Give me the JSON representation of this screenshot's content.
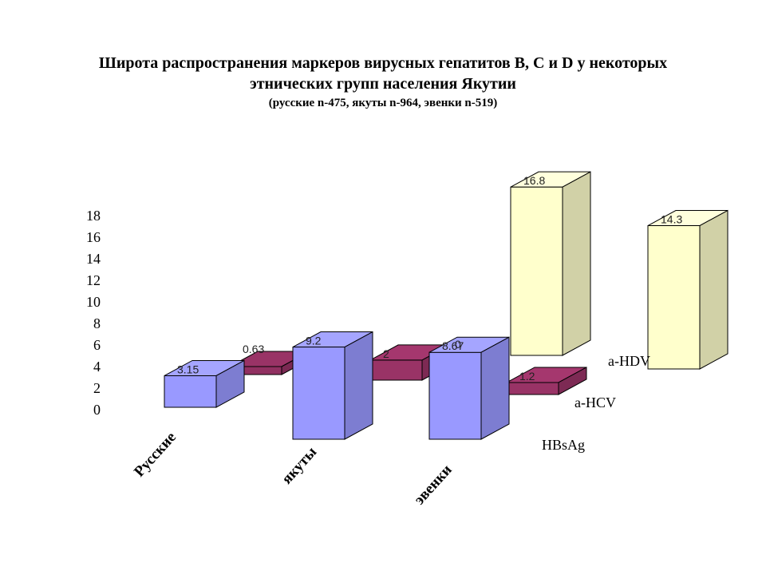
{
  "title": {
    "line1": "Широта распространения маркеров вирусных гепатитов B, C и D у некоторых",
    "line2": "этнических групп населения Якутии",
    "subtitle": "(русские n-475,    якуты n-964,    эвенки n-519)"
  },
  "chart_data": {
    "type": "bar",
    "subtype": "3d-clustered-columns",
    "categories": [
      "Русские",
      "якуты",
      "эвенки"
    ],
    "series": [
      {
        "name": "HBsAg",
        "values": [
          3.15,
          9.2,
          8.67
        ],
        "labels": [
          "3.15",
          "9.2",
          "8.67"
        ],
        "color": "#9999ff"
      },
      {
        "name": "a-HCV",
        "values": [
          0.63,
          2,
          1.2
        ],
        "labels": [
          "0.63",
          "2",
          "1.2"
        ],
        "color": "#993366"
      },
      {
        "name": "a-HDV",
        "values": [
          0,
          16.8,
          14.3
        ],
        "labels": [
          "0",
          "16.8",
          "14.3"
        ],
        "color": "#ffffcc"
      }
    ],
    "yticks": [
      "18",
      "16",
      "14",
      "12",
      "10",
      "8",
      "6",
      "4",
      "2",
      "0"
    ],
    "ylim": [
      0,
      18
    ],
    "grid": false,
    "legend": "series labels beside depth rows"
  }
}
